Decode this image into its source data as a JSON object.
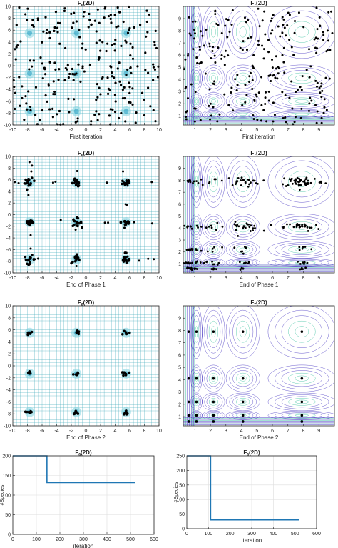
{
  "colors": {
    "grid": "#3aa6b8",
    "frame": "#222222",
    "contour_outer": "#4f3fc4",
    "contour_inner": "#46c4a4",
    "line": "#1f77b4",
    "point": "#000000"
  },
  "chart_data": [
    {
      "id": "p1",
      "type": "scatter",
      "title": "F",
      "title_sub": "6",
      "title_tail": "(2D)",
      "xlabel": "First iteration",
      "xlim": [
        -10,
        10
      ],
      "ylim": [
        -10,
        10
      ],
      "xticks": [
        -10,
        -8,
        -6,
        -4,
        -2,
        0,
        2,
        4,
        6,
        8,
        10
      ],
      "yticks": [
        -10,
        -8,
        -6,
        -4,
        -2,
        0,
        2,
        4,
        6,
        8,
        10
      ],
      "grid": "dense",
      "peaks_x": [
        -7.7,
        -1.3,
        5.5
      ],
      "peaks_y": [
        5.5,
        -1.3,
        -7.7
      ],
      "points": "uniform random population (about 250 points)"
    },
    {
      "id": "p2",
      "type": "scatter",
      "title": "F",
      "title_sub": "7",
      "title_tail": "(2D)",
      "xlabel": "First iteration",
      "xlim": [
        0.25,
        10
      ],
      "ylim": [
        0.25,
        10
      ],
      "xticks": [
        1,
        2,
        3,
        4,
        5,
        6,
        7,
        8,
        9
      ],
      "yticks": [
        1,
        2,
        3,
        4,
        5,
        6,
        7,
        8,
        9
      ],
      "background": "contour",
      "points": "uniform random population (about 250 points)"
    },
    {
      "id": "p3",
      "type": "scatter",
      "title": "F",
      "title_sub": "6",
      "title_tail": "(2D)",
      "xlabel": "End of Phase 1",
      "xlim": [
        -10,
        10
      ],
      "ylim": [
        -10,
        10
      ],
      "xticks": [
        -10,
        -8,
        -6,
        -4,
        -2,
        0,
        2,
        4,
        6,
        8,
        10
      ],
      "yticks": [
        -10,
        -8,
        -6,
        -4,
        -2,
        0,
        2,
        4,
        6,
        8,
        10
      ],
      "grid": "dense",
      "clusters_x": [
        -7.7,
        -1.3,
        5.5
      ],
      "clusters_y": [
        5.5,
        -1.3,
        -7.7
      ]
    },
    {
      "id": "p4",
      "type": "scatter",
      "title": "F",
      "title_sub": "7",
      "title_tail": "(2D)",
      "xlabel": "End of Phase 1",
      "xlim": [
        0.25,
        10
      ],
      "ylim": [
        0.25,
        10
      ],
      "xticks": [
        1,
        2,
        3,
        4,
        5,
        6,
        7,
        8,
        9
      ],
      "yticks": [
        1,
        2,
        3,
        4,
        5,
        6,
        7,
        8,
        9
      ],
      "background": "contour",
      "clusters_x": [
        0.6,
        1.1,
        2.2,
        4.1,
        7.9
      ],
      "clusters_y": [
        0.6,
        1.1,
        2.2,
        4.1,
        7.9
      ]
    },
    {
      "id": "p5",
      "type": "scatter",
      "title": "F",
      "title_sub": "6",
      "title_tail": "(2D)",
      "xlabel": "End of Phase 2",
      "xlim": [
        -10,
        10
      ],
      "ylim": [
        -10,
        10
      ],
      "xticks": [
        -10,
        -8,
        -6,
        -4,
        -2,
        0,
        2,
        4,
        6,
        8,
        10
      ],
      "yticks": [
        -10,
        -8,
        -6,
        -4,
        -2,
        0,
        2,
        4,
        6,
        8,
        10
      ],
      "grid": "dense",
      "clusters_x": [
        -7.7,
        -1.3,
        5.5
      ],
      "clusters_y": [
        5.5,
        -1.3,
        -7.7
      ]
    },
    {
      "id": "p6",
      "type": "scatter",
      "title": "F",
      "title_sub": "7",
      "title_tail": "(2D)",
      "xlabel": "End of Phase 2",
      "xlim": [
        0.25,
        10
      ],
      "ylim": [
        0.25,
        10
      ],
      "xticks": [
        1,
        2,
        3,
        4,
        5,
        6,
        7,
        8,
        9
      ],
      "yticks": [
        1,
        2,
        3,
        4,
        5,
        6,
        7,
        8,
        9
      ],
      "background": "contour",
      "clusters_x": [
        0.6,
        1.1,
        2.2,
        4.1,
        7.9
      ],
      "clusters_y": [
        0.6,
        1.1,
        2.2,
        4.1,
        7.9
      ]
    },
    {
      "id": "p7",
      "type": "line",
      "title": "F",
      "title_sub": "6",
      "title_tail": "(2D)",
      "xlabel": "iteration",
      "ylabel": "#Species",
      "xlim": [
        0,
        600
      ],
      "ylim": [
        0,
        200
      ],
      "xticks": [
        0,
        100,
        200,
        300,
        400,
        500,
        600
      ],
      "yticks": [
        0,
        50,
        100,
        150,
        200
      ],
      "grid": true,
      "x": [
        0,
        145,
        145,
        520
      ],
      "y": [
        200,
        200,
        132,
        132
      ]
    },
    {
      "id": "p8",
      "type": "line",
      "title": "F",
      "title_sub": "6",
      "title_tail": "(2D)",
      "xlabel": "iteration",
      "ylabel": "#Species",
      "xlim": [
        0,
        600
      ],
      "ylim": [
        0,
        250
      ],
      "xticks": [
        0,
        100,
        200,
        300,
        400,
        500,
        600
      ],
      "yticks": [
        0,
        50,
        100,
        150,
        200,
        250
      ],
      "grid": true,
      "x": [
        0,
        110,
        110,
        520
      ],
      "y": [
        250,
        250,
        30,
        30
      ]
    }
  ]
}
